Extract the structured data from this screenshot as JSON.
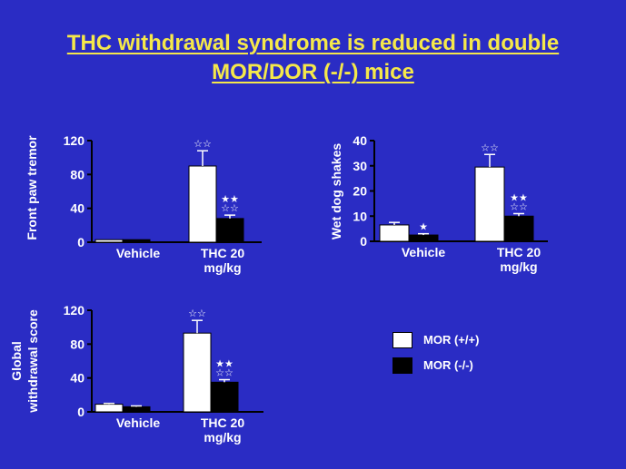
{
  "title_line1": "THC withdrawal syndrome is reduced in double",
  "title_line2": "MOR/DOR (-/-) mice",
  "colors": {
    "background": "#2a2cc4",
    "title": "#f5e84a",
    "text": "#ffffff",
    "wildtype": "#ffffff",
    "knockout": "#000000"
  },
  "legend": [
    {
      "label": "MOR (+/+)",
      "color": "#ffffff"
    },
    {
      "label": "MOR (-/-)",
      "color": "#000000"
    }
  ],
  "chart_data": [
    {
      "type": "bar",
      "ylabel": [
        "Front paw tremor"
      ],
      "ylim": [
        0,
        120
      ],
      "yticks": [
        "0",
        "40",
        "80",
        "120"
      ],
      "categories": [
        [
          "Vehicle"
        ],
        [
          "THC 20",
          "mg/kg"
        ]
      ],
      "series": [
        {
          "name": "MOR (+/+)",
          "values": [
            3,
            90
          ],
          "errors": [
            0,
            18
          ],
          "marks": [
            "",
            "☆☆"
          ]
        },
        {
          "name": "MOR (-/-)",
          "values": [
            3,
            28
          ],
          "errors": [
            0,
            4
          ],
          "marks": [
            "",
            "★★\n☆☆"
          ]
        }
      ]
    },
    {
      "type": "bar",
      "ylabel": [
        "Wet dog shakes"
      ],
      "ylim": [
        0,
        40
      ],
      "yticks": [
        "0",
        "10",
        "20",
        "30",
        "40"
      ],
      "categories": [
        [
          "Vehicle"
        ],
        [
          "THC 20",
          "mg/kg"
        ]
      ],
      "series": [
        {
          "name": "MOR (+/+)",
          "values": [
            6.5,
            29.5
          ],
          "errors": [
            1,
            5
          ],
          "marks": [
            "",
            "☆☆"
          ]
        },
        {
          "name": "MOR (-/-)",
          "values": [
            2.5,
            10
          ],
          "errors": [
            0.5,
            1
          ],
          "marks": [
            "★",
            "★★\n☆☆"
          ]
        }
      ]
    },
    {
      "type": "bar",
      "ylabel": [
        "Global",
        "withdrawal score"
      ],
      "ylim": [
        0,
        120
      ],
      "yticks": [
        "0",
        "40",
        "80",
        "120"
      ],
      "categories": [
        [
          "Vehicle"
        ],
        [
          "THC 20",
          "mg/kg"
        ]
      ],
      "series": [
        {
          "name": "MOR (+/+)",
          "values": [
            9,
            93
          ],
          "errors": [
            1,
            15
          ],
          "marks": [
            "",
            "☆☆"
          ]
        },
        {
          "name": "MOR (-/-)",
          "values": [
            6,
            35
          ],
          "errors": [
            1,
            3
          ],
          "marks": [
            "",
            "★★\n☆☆"
          ]
        }
      ]
    }
  ]
}
